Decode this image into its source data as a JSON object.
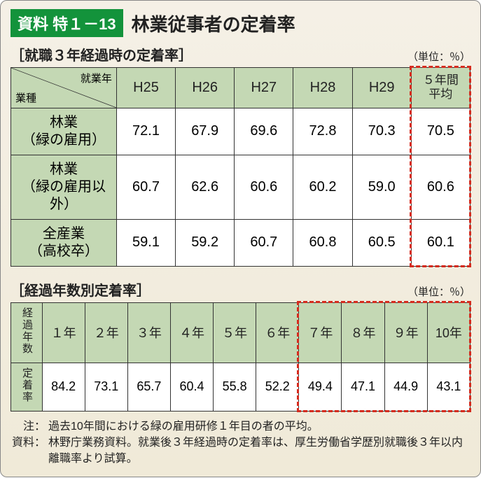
{
  "badge_label": "資料 特１－13",
  "main_title": "林業従事者の定着率",
  "colors": {
    "accent_green": "#13933b",
    "header_fill": "#c4d8b4",
    "highlight_border": "#d52b1e",
    "card_bg_top": "#f5f0e6",
    "card_bg_bottom": "#f0ead8",
    "border": "#333333",
    "text": "#222222"
  },
  "typography": {
    "title_fontsize_pt": 20,
    "cell_fontsize_pt": 15,
    "notes_fontsize_pt": 12
  },
  "table1": {
    "section_title": "［就職３年経過時の定着率］",
    "unit_label": "（単位：％）",
    "diag_top": "就業年",
    "diag_bottom": "業種",
    "columns": [
      "H25",
      "H26",
      "H27",
      "H28",
      "H29",
      "５年間\n平均"
    ],
    "rows": [
      {
        "label": "林業\n（緑の雇用）",
        "values": [
          72.1,
          67.9,
          69.6,
          72.8,
          70.3,
          70.5
        ]
      },
      {
        "label": "林業\n（緑の雇用以外）",
        "values": [
          60.7,
          62.6,
          60.6,
          60.2,
          59.0,
          60.6
        ]
      },
      {
        "label": "全産業\n（高校卒）",
        "values": [
          59.1,
          59.2,
          60.7,
          60.8,
          60.5,
          60.1
        ]
      }
    ],
    "col_widths_pct": [
      23,
      12.83,
      12.83,
      12.83,
      12.83,
      12.83,
      12.83
    ],
    "highlight_last_column": true
  },
  "table2": {
    "section_title": "［経過年数別定着率］",
    "unit_label": "（単位：％）",
    "rowhdr_top": "経過年数",
    "rowhdr_bottom": "定着率",
    "columns": [
      "１年",
      "２年",
      "３年",
      "４年",
      "５年",
      "６年",
      "７年",
      "８年",
      "９年",
      "10年"
    ],
    "values": [
      84.2,
      73.1,
      65.7,
      60.4,
      55.8,
      52.2,
      49.4,
      47.1,
      44.9,
      43.1
    ],
    "col_widths_pct": [
      6.8,
      9.32,
      9.32,
      9.32,
      9.32,
      9.32,
      9.32,
      9.32,
      9.32,
      9.32,
      9.32
    ],
    "highlight_from_col": 7
  },
  "notes": {
    "note_label": "注：",
    "note_text": "過去10年間における緑の雇用研修１年目の者の平均。",
    "source_label": "資料：",
    "source_text": "林野庁業務資料。就業後３年経過時の定着率は、厚生労働省学歴別就職後３年以内離職率より試算。"
  }
}
